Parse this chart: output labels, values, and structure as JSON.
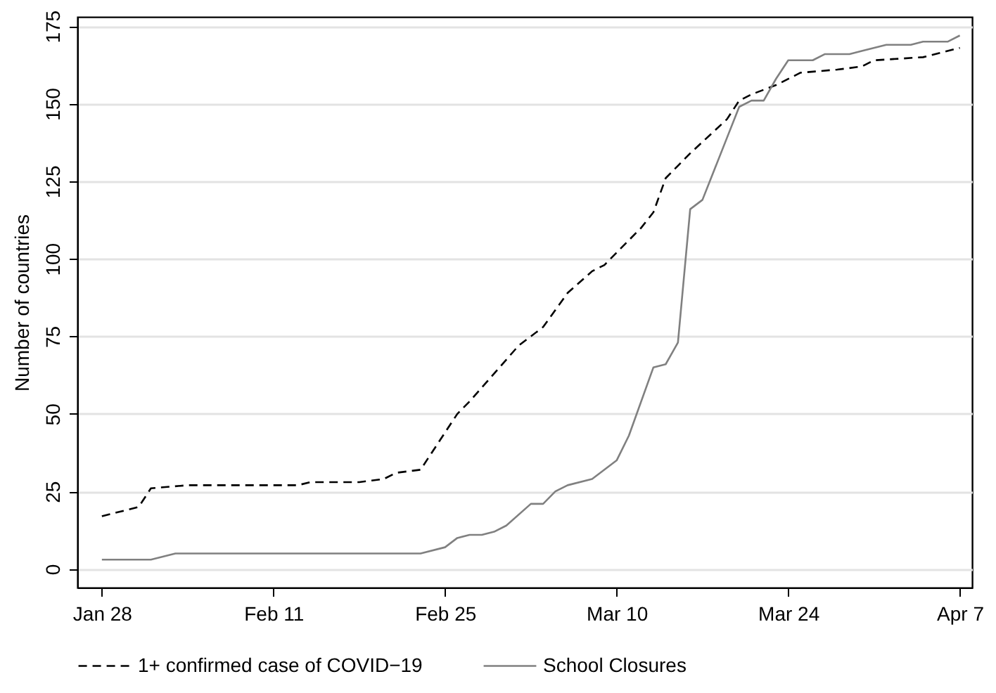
{
  "chart_data": {
    "type": "line",
    "ylabel": "Number of countries",
    "xlim": [
      "--01-26",
      "--04-08"
    ],
    "xticks": [
      {
        "value": "--01-28",
        "label": "Jan 28"
      },
      {
        "value": "--02-11",
        "label": "Feb 11"
      },
      {
        "value": "--02-25",
        "label": "Feb 25"
      },
      {
        "value": "--03-10",
        "label": "Mar 10"
      },
      {
        "value": "--03-24",
        "label": "Mar 24"
      },
      {
        "value": "--04-07",
        "label": "Apr 7"
      }
    ],
    "ylim": [
      -6,
      178
    ],
    "yticks": [
      0,
      25,
      50,
      75,
      100,
      125,
      150,
      175
    ],
    "grid": "y",
    "legend": "bottom",
    "marker": "none",
    "series": [
      {
        "name": "1+ confirmed case of COVID−19",
        "color": "#000000",
        "line_style": "dashed",
        "x": [
          "--01-28",
          "--01-31",
          "--02-01",
          "--02-04",
          "--02-13",
          "--02-14",
          "--02-18",
          "--02-20",
          "--02-21",
          "--02-23",
          "--02-26",
          "--02-27",
          "--03-02",
          "--03-04",
          "--03-06",
          "--03-08",
          "--03-09",
          "--03-11",
          "--03-12",
          "--03-13",
          "--03-14",
          "--03-15",
          "--03-16",
          "--03-19",
          "--03-20",
          "--03-21",
          "--03-23",
          "--03-25",
          "--03-28",
          "--03-30",
          "--03-31",
          "--04-04",
          "--04-06",
          "--04-07"
        ],
        "values": [
          17,
          20,
          26,
          27,
          27,
          28,
          28,
          29,
          31,
          32,
          50,
          54,
          72,
          78,
          89,
          96,
          98,
          106,
          110,
          115,
          126,
          130,
          134,
          145,
          151,
          153,
          156,
          160,
          161,
          162,
          164,
          165,
          167,
          168
        ]
      },
      {
        "name": "School Closures",
        "color": "#808080",
        "line_style": "solid",
        "x": [
          "--01-28",
          "--02-01",
          "--02-03",
          "--02-23",
          "--02-25",
          "--02-26",
          "--02-27",
          "--02-28",
          "--02-29",
          "--03-01",
          "--03-03",
          "--03-04",
          "--03-05",
          "--03-06",
          "--03-08",
          "--03-10",
          "--03-11",
          "--03-13",
          "--03-14",
          "--03-15",
          "--03-16",
          "--03-17",
          "--03-18",
          "--03-19",
          "--03-20",
          "--03-21",
          "--03-22",
          "--03-23",
          "--03-24",
          "--03-26",
          "--03-27",
          "--03-29",
          "--03-30",
          "--04-01",
          "--04-03",
          "--04-04",
          "--04-06",
          "--04-07"
        ],
        "values": [
          3,
          3,
          5,
          5,
          7,
          10,
          11,
          11,
          12,
          14,
          21,
          21,
          25,
          27,
          29,
          35,
          43,
          65,
          66,
          73,
          116,
          119,
          129,
          139,
          149,
          151,
          151,
          158,
          164,
          164,
          166,
          166,
          167,
          169,
          169,
          170,
          170,
          172
        ]
      }
    ]
  }
}
